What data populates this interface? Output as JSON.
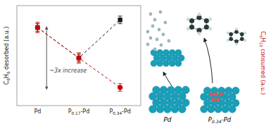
{
  "chart_data": {
    "type": "errorbar",
    "categories": [
      "Pd",
      "P0.17-Pd",
      "P0.34-Pd"
    ],
    "series": [
      {
        "color": "#1a1a1a",
        "marker": "square",
        "line_style": "dashed",
        "values": [
          0.82,
          0.5,
          0.9
        ],
        "errors": [
          0.04,
          0.04,
          0.04
        ]
      },
      {
        "color": "#cc0000",
        "marker": "circle",
        "line_style": "dashed",
        "values": [
          0.82,
          0.5,
          0.19
        ],
        "errors": [
          0.055,
          0.055,
          0.04
        ]
      }
    ],
    "ylabel": "C6H6 desorbed (a.u.)",
    "ylabel_right": "C6H10 consumed (a.u.)",
    "ylim": [
      0.0,
      1.05
    ],
    "yticks": [],
    "tick_labels": "x",
    "grid": false,
    "annotations": [
      {
        "text": "~3x increase",
        "arrow": [
          0.17,
          0.83
        ]
      },
      {
        "text": "Pd"
      },
      {
        "text": "P0.34-Pd"
      }
    ]
  }
}
